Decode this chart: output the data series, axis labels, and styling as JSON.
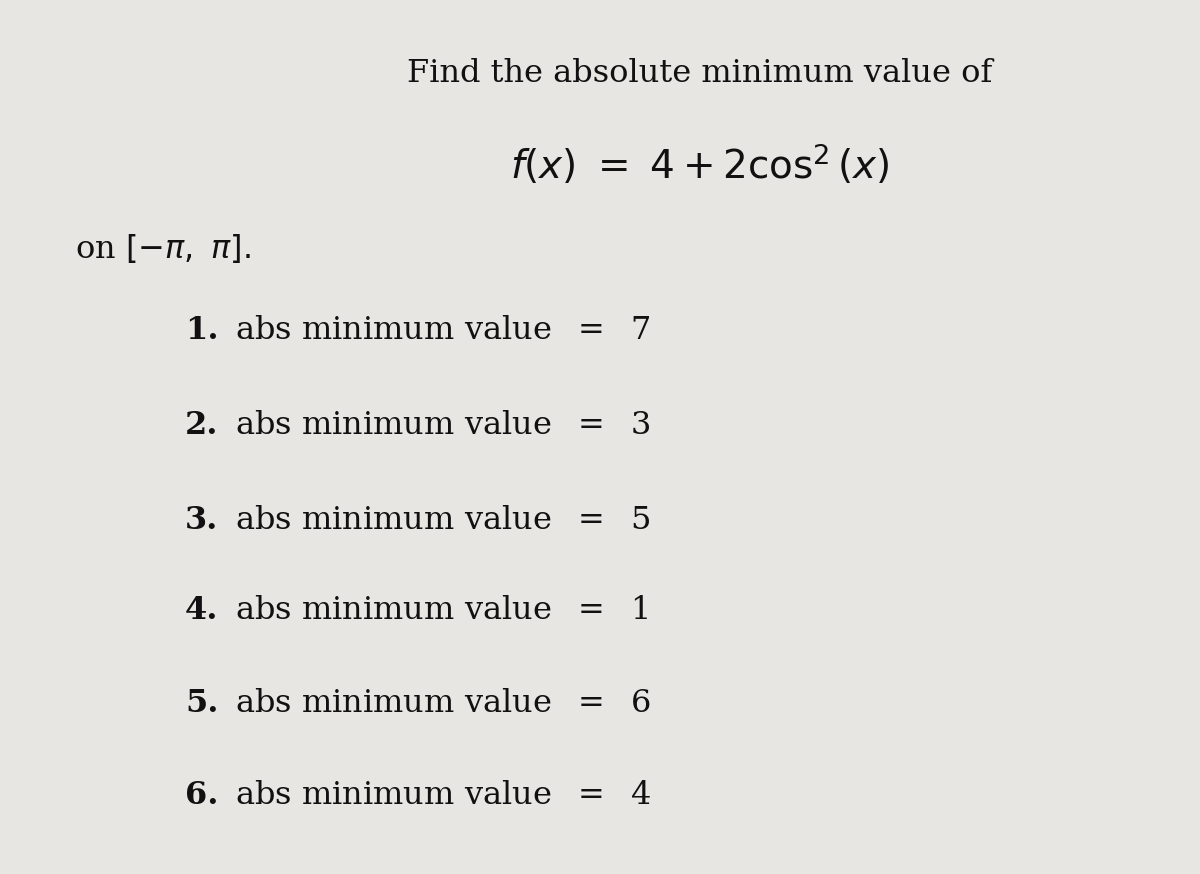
{
  "background_color": "#e8e6e3",
  "title_line1": "Find the absolute minimum value of",
  "function_line": "$f(x) \\ = \\ 4 + 2\\cos^2(x)$",
  "domain_line": "on $[-\\pi,\\ \\pi].$",
  "options": [
    {
      "num": "1.",
      "text": "abs minimum value  $=$  7"
    },
    {
      "num": "2.",
      "text": "abs minimum value  $=$  3"
    },
    {
      "num": "3.",
      "text": "abs minimum value  $=$  5"
    },
    {
      "num": "4.",
      "text": "abs minimum value  $=$  1"
    },
    {
      "num": "5.",
      "text": "abs minimum value  $=$  6"
    },
    {
      "num": "6.",
      "text": "abs minimum value  $=$  4"
    }
  ],
  "title_fontsize": 23,
  "function_fontsize": 28,
  "domain_fontsize": 23,
  "option_fontsize": 23,
  "text_color": "#111111"
}
